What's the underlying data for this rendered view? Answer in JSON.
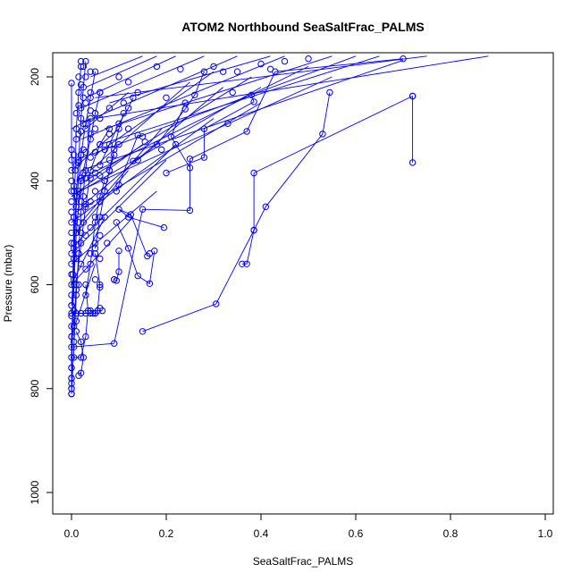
{
  "chart_data": {
    "type": "line",
    "title": "ATOM2 Northbound SeaSaltFrac_PALMS",
    "xlabel": "SeaSaltFrac_PALMS",
    "ylabel": "Pressure (mbar)",
    "xlim": [
      0.0,
      1.0
    ],
    "ylim": [
      1040,
      160
    ],
    "y_reversed": true,
    "x_ticks": [
      "0.0",
      "0.2",
      "0.4",
      "0.6",
      "0.8",
      "1.0"
    ],
    "y_ticks": [
      "200",
      "400",
      "600",
      "800",
      "1000"
    ],
    "grid": false,
    "legend": "none",
    "color": "#0000ff",
    "marker": "open-circle",
    "series": [
      {
        "x": [
          0.72,
          0.72
        ],
        "y": [
          237,
          365
        ]
      },
      {
        "x": [
          0.72,
          0.385,
          0.385,
          0.37,
          0.36
        ],
        "y": [
          237,
          385,
          495,
          560,
          560
        ]
      },
      {
        "x": [
          0.545,
          0.53,
          0.41,
          0.385,
          0.305,
          0.15
        ],
        "y": [
          230,
          310,
          450,
          495,
          637,
          690
        ]
      },
      {
        "x": [
          0.7,
          0.43,
          0.37,
          0.25,
          0.25,
          0.15,
          0.09
        ],
        "y": [
          165,
          190,
          305,
          358,
          457,
          455,
          713
        ]
      },
      {
        "x": [
          0.38,
          0.385,
          0.28,
          0.28,
          0.2
        ],
        "y": [
          235,
          248,
          300,
          355,
          385
        ]
      },
      {
        "x": [
          0.28,
          0.26,
          0.24,
          0.18,
          0.14,
          0.13
        ],
        "y": [
          190,
          235,
          262,
          330,
          360,
          362
        ]
      },
      {
        "x": [
          0.24,
          0.21,
          0.25
        ],
        "y": [
          250,
          315,
          375
        ]
      },
      {
        "x": [
          0.195,
          0.12,
          0.1,
          0.125,
          0.16
        ],
        "y": [
          490,
          470,
          455,
          465,
          545
        ]
      },
      {
        "x": [
          0.175,
          0.165,
          0.14,
          0.12,
          0.095
        ],
        "y": [
          535,
          598,
          583,
          530,
          480
        ]
      },
      {
        "x": [
          0.15,
          0.14,
          0.1,
          0.095
        ],
        "y": [
          315,
          312,
          408,
          420
        ]
      },
      {
        "x": [
          0.1,
          0.1,
          0.095,
          0.09
        ],
        "y": [
          535,
          575,
          592,
          590
        ]
      },
      {
        "x": [
          0.08,
          0.06,
          0.04,
          0.03,
          0.02,
          0.01,
          0.005
        ],
        "y": [
          300,
          330,
          380,
          450,
          520,
          600,
          680
        ]
      },
      {
        "x": [
          0.06,
          0.05,
          0.04,
          0.02,
          0.01,
          0.0
        ],
        "y": [
          230,
          270,
          320,
          400,
          500,
          640
        ]
      },
      {
        "x": [
          0.05,
          0.04,
          0.03,
          0.02,
          0.01,
          0.005,
          0.0
        ],
        "y": [
          190,
          240,
          290,
          350,
          450,
          550,
          760
        ]
      },
      {
        "x": [
          0.03,
          0.025,
          0.02,
          0.015,
          0.01,
          0.005,
          0.0
        ],
        "y": [
          170,
          220,
          280,
          360,
          430,
          520,
          800
        ]
      },
      {
        "x": [
          0.02,
          0.015,
          0.01,
          0.008,
          0.005,
          0.003,
          0.0
        ],
        "y": [
          180,
          230,
          300,
          380,
          470,
          580,
          810
        ]
      },
      {
        "x": [
          0.0,
          0.005,
          0.01,
          0.015,
          0.02,
          0.03,
          0.04
        ],
        "y": [
          810,
          720,
          620,
          540,
          460,
          380,
          280
        ]
      },
      {
        "x": [
          0.0,
          0.0,
          0.005,
          0.01,
          0.02
        ],
        "y": [
          780,
          700,
          600,
          500,
          400
        ]
      },
      {
        "x": [
          0.05,
          0.06,
          0.055,
          0.05,
          0.045,
          0.04
        ],
        "y": [
          540,
          600,
          650,
          655,
          655,
          650
        ]
      },
      {
        "x": [
          0.0,
          0.01,
          0.02,
          0.03,
          0.04,
          0.05
        ],
        "y": [
          655,
          655,
          655,
          655,
          655,
          655
        ]
      },
      {
        "x": [
          0.01,
          0.02,
          0.025,
          0.02,
          0.015
        ],
        "y": [
          690,
          710,
          740,
          770,
          775
        ]
      },
      {
        "x": [
          0.03,
          0.035,
          0.03,
          0.02,
          0.005
        ],
        "y": [
          600,
          650,
          700,
          740,
          740
        ]
      },
      {
        "x": [
          0.07,
          0.06,
          0.05,
          0.04,
          0.03
        ],
        "y": [
          400,
          430,
          480,
          560,
          620
        ]
      },
      {
        "x": [
          0.09,
          0.08,
          0.07,
          0.06,
          0.05
        ],
        "y": [
          350,
          380,
          420,
          470,
          530
        ]
      },
      {
        "x": [
          0.11,
          0.1,
          0.09,
          0.08,
          0.07
        ],
        "y": [
          270,
          300,
          340,
          380,
          420
        ]
      },
      {
        "x": [
          0.13,
          0.12,
          0.1,
          0.08,
          0.06
        ],
        "y": [
          240,
          260,
          290,
          330,
          370
        ]
      },
      {
        "x": [
          0.0,
          0.0,
          0.005,
          0.01
        ],
        "y": [
          212,
          340,
          420,
          450
        ]
      }
    ],
    "fan_lines": [
      {
        "x": [
          0.0,
          0.2
        ],
        "y": [
          540,
          360
        ]
      },
      {
        "x": [
          0.0,
          0.3
        ],
        "y": [
          480,
          280
        ]
      },
      {
        "x": [
          0.0,
          0.4
        ],
        "y": [
          430,
          220
        ]
      },
      {
        "x": [
          0.01,
          0.5
        ],
        "y": [
          400,
          180
        ]
      },
      {
        "x": [
          0.01,
          0.6
        ],
        "y": [
          360,
          160
        ]
      },
      {
        "x": [
          0.02,
          0.45
        ],
        "y": [
          320,
          160
        ]
      },
      {
        "x": [
          0.02,
          0.35
        ],
        "y": [
          290,
          160
        ]
      },
      {
        "x": [
          0.02,
          0.28
        ],
        "y": [
          260,
          160
        ]
      },
      {
        "x": [
          0.03,
          0.22
        ],
        "y": [
          240,
          160
        ]
      },
      {
        "x": [
          0.03,
          0.18
        ],
        "y": [
          220,
          160
        ]
      },
      {
        "x": [
          0.04,
          0.15
        ],
        "y": [
          200,
          160
        ]
      },
      {
        "x": [
          0.05,
          0.75
        ],
        "y": [
          240,
          160
        ]
      },
      {
        "x": [
          0.05,
          0.88
        ],
        "y": [
          280,
          160
        ]
      },
      {
        "x": [
          0.06,
          0.65
        ],
        "y": [
          330,
          160
        ]
      },
      {
        "x": [
          0.07,
          0.55
        ],
        "y": [
          300,
          160
        ]
      },
      {
        "x": [
          0.08,
          0.42
        ],
        "y": [
          250,
          160
        ]
      },
      {
        "x": [
          0.02,
          0.32
        ],
        "y": [
          450,
          220
        ]
      },
      {
        "x": [
          0.03,
          0.38
        ],
        "y": [
          400,
          200
        ]
      },
      {
        "x": [
          0.04,
          0.25
        ],
        "y": [
          380,
          210
        ]
      },
      {
        "x": [
          0.05,
          0.3
        ],
        "y": [
          350,
          190
        ]
      },
      {
        "x": [
          0.03,
          0.12
        ],
        "y": [
          300,
          230
        ]
      },
      {
        "x": [
          0.0,
          0.1
        ],
        "y": [
          380,
          300
        ]
      },
      {
        "x": [
          0.0,
          0.15
        ],
        "y": [
          430,
          330
        ]
      },
      {
        "x": [
          0.01,
          0.12
        ],
        "y": [
          500,
          380
        ]
      },
      {
        "x": [
          0.0,
          0.07
        ],
        "y": [
          600,
          470
        ]
      },
      {
        "x": [
          0.0,
          0.05
        ],
        "y": [
          700,
          560
        ]
      },
      {
        "x": [
          0.0,
          0.09
        ],
        "y": [
          720,
          713
        ]
      },
      {
        "x": [
          0.01,
          0.4
        ],
        "y": [
          460,
          250
        ]
      },
      {
        "x": [
          0.015,
          0.55
        ],
        "y": [
          420,
          200
        ]
      },
      {
        "x": [
          0.02,
          0.7
        ],
        "y": [
          380,
          168
        ]
      },
      {
        "x": [
          0.0,
          0.13
        ],
        "y": [
          600,
          470
        ]
      },
      {
        "x": [
          0.0,
          0.18
        ],
        "y": [
          560,
          420
        ]
      },
      {
        "x": [
          0.01,
          0.22
        ],
        "y": [
          520,
          330
        ]
      },
      {
        "x": [
          0.02,
          0.19
        ],
        "y": [
          480,
          300
        ]
      },
      {
        "x": [
          0.0,
          0.04
        ],
        "y": [
          300,
          280
        ]
      }
    ],
    "dense_points": [
      [
        0.0,
        340
      ],
      [
        0.0,
        360
      ],
      [
        0.0,
        380
      ],
      [
        0.0,
        400
      ],
      [
        0.0,
        420
      ],
      [
        0.0,
        440
      ],
      [
        0.0,
        460
      ],
      [
        0.0,
        480
      ],
      [
        0.0,
        500
      ],
      [
        0.0,
        520
      ],
      [
        0.0,
        540
      ],
      [
        0.0,
        560
      ],
      [
        0.0,
        580
      ],
      [
        0.0,
        600
      ],
      [
        0.0,
        620
      ],
      [
        0.0,
        640
      ],
      [
        0.0,
        660
      ],
      [
        0.0,
        680
      ],
      [
        0.0,
        700
      ],
      [
        0.0,
        720
      ],
      [
        0.0,
        740
      ],
      [
        0.0,
        760
      ],
      [
        0.0,
        780
      ],
      [
        0.0,
        790
      ],
      [
        0.0,
        800
      ],
      [
        0.0,
        810
      ],
      [
        0.005,
        350
      ],
      [
        0.005,
        410
      ],
      [
        0.005,
        470
      ],
      [
        0.005,
        530
      ],
      [
        0.005,
        590
      ],
      [
        0.005,
        650
      ],
      [
        0.005,
        710
      ],
      [
        0.01,
        270
      ],
      [
        0.01,
        320
      ],
      [
        0.01,
        370
      ],
      [
        0.01,
        430
      ],
      [
        0.01,
        490
      ],
      [
        0.01,
        550
      ],
      [
        0.01,
        610
      ],
      [
        0.01,
        670
      ],
      [
        0.015,
        200
      ],
      [
        0.015,
        255
      ],
      [
        0.015,
        310
      ],
      [
        0.015,
        365
      ],
      [
        0.015,
        420
      ],
      [
        0.015,
        480
      ],
      [
        0.015,
        540
      ],
      [
        0.015,
        600
      ],
      [
        0.02,
        170
      ],
      [
        0.02,
        215
      ],
      [
        0.02,
        260
      ],
      [
        0.02,
        305
      ],
      [
        0.02,
        350
      ],
      [
        0.02,
        395
      ],
      [
        0.02,
        440
      ],
      [
        0.02,
        500
      ],
      [
        0.02,
        560
      ],
      [
        0.025,
        180
      ],
      [
        0.025,
        240
      ],
      [
        0.025,
        290
      ],
      [
        0.025,
        340
      ],
      [
        0.025,
        385
      ],
      [
        0.025,
        430
      ],
      [
        0.025,
        480
      ],
      [
        0.03,
        200
      ],
      [
        0.03,
        250
      ],
      [
        0.03,
        300
      ],
      [
        0.03,
        345
      ],
      [
        0.03,
        395
      ],
      [
        0.03,
        445
      ],
      [
        0.03,
        505
      ],
      [
        0.03,
        570
      ],
      [
        0.04,
        190
      ],
      [
        0.04,
        230
      ],
      [
        0.04,
        265
      ],
      [
        0.04,
        310
      ],
      [
        0.04,
        355
      ],
      [
        0.04,
        395
      ],
      [
        0.04,
        440
      ],
      [
        0.04,
        490
      ],
      [
        0.04,
        540
      ],
      [
        0.05,
        270
      ],
      [
        0.05,
        300
      ],
      [
        0.05,
        345
      ],
      [
        0.05,
        385
      ],
      [
        0.05,
        420
      ],
      [
        0.05,
        470
      ],
      [
        0.05,
        520
      ],
      [
        0.05,
        590
      ],
      [
        0.06,
        230
      ],
      [
        0.06,
        280
      ],
      [
        0.06,
        330
      ],
      [
        0.06,
        390
      ],
      [
        0.06,
        440
      ],
      [
        0.06,
        505
      ],
      [
        0.06,
        550
      ],
      [
        0.06,
        605
      ],
      [
        0.06,
        645
      ],
      [
        0.065,
        650
      ],
      [
        0.07,
        340
      ],
      [
        0.07,
        400
      ],
      [
        0.07,
        470
      ],
      [
        0.075,
        520
      ],
      [
        0.08,
        260
      ],
      [
        0.08,
        310
      ],
      [
        0.08,
        360
      ],
      [
        0.09,
        590
      ],
      [
        0.1,
        200
      ],
      [
        0.1,
        330
      ],
      [
        0.11,
        250
      ],
      [
        0.12,
        210
      ],
      [
        0.12,
        300
      ],
      [
        0.14,
        230
      ],
      [
        0.155,
        325
      ],
      [
        0.165,
        540
      ],
      [
        0.18,
        180
      ],
      [
        0.19,
        340
      ],
      [
        0.2,
        240
      ],
      [
        0.22,
        330
      ],
      [
        0.23,
        185
      ],
      [
        0.3,
        180
      ],
      [
        0.32,
        190
      ],
      [
        0.33,
        290
      ],
      [
        0.34,
        230
      ],
      [
        0.35,
        190
      ],
      [
        0.4,
        175
      ],
      [
        0.42,
        185
      ],
      [
        0.45,
        170
      ],
      [
        0.5,
        165
      ]
    ]
  }
}
